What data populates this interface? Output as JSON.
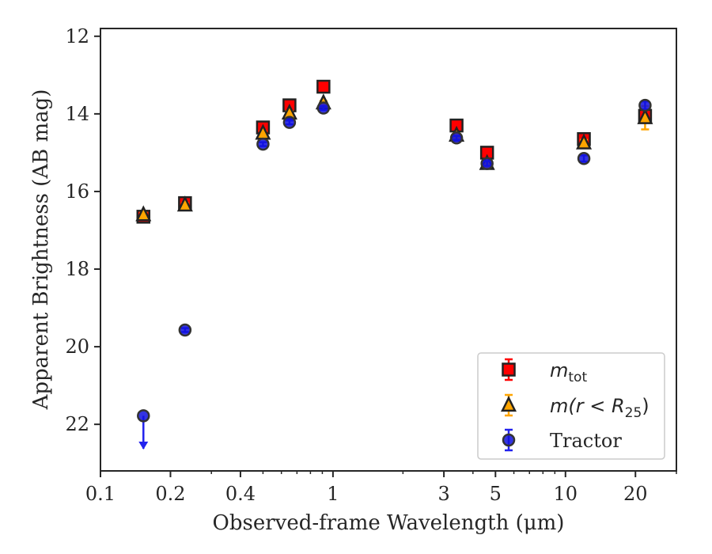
{
  "chart_data": {
    "type": "scatter",
    "xlabel": "Observed-frame Wavelength (μm)",
    "ylabel": "Apparent Brightness (AB mag)",
    "xscale": "log",
    "xlim": [
      0.1,
      30
    ],
    "ylim": [
      23.2,
      11.8
    ],
    "y_inverted": true,
    "x_ticks": [
      0.1,
      0.2,
      0.4,
      1,
      3,
      5,
      10,
      20
    ],
    "x_tick_labels": [
      "0.1",
      "0.2",
      "0.4",
      "1",
      "3",
      "5",
      "10",
      "20"
    ],
    "y_ticks": [
      12,
      14,
      16,
      18,
      20,
      22
    ],
    "y_tick_labels": [
      "12",
      "14",
      "16",
      "18",
      "20",
      "22"
    ],
    "legend_position": "lower-right",
    "series": [
      {
        "name": "m_tot",
        "legend_label": {
          "main": "m",
          "sub": "tot",
          "suffix": ""
        },
        "marker": "square",
        "color": "#ff0000",
        "edge": "#222222",
        "errcolor": "#ff0000",
        "points": [
          {
            "x": 0.153,
            "y": 16.65,
            "err": 0.05
          },
          {
            "x": 0.231,
            "y": 16.3,
            "err": 0.05
          },
          {
            "x": 0.5,
            "y": 14.35,
            "err": 0.05
          },
          {
            "x": 0.65,
            "y": 13.78,
            "err": 0.05
          },
          {
            "x": 0.91,
            "y": 13.3,
            "err": 0.05
          },
          {
            "x": 3.4,
            "y": 14.3,
            "err": 0.05
          },
          {
            "x": 4.6,
            "y": 15.0,
            "err": 0.06
          },
          {
            "x": 12.0,
            "y": 14.65,
            "err": 0.08
          },
          {
            "x": 22.0,
            "y": 14.05,
            "err": 0.15
          }
        ]
      },
      {
        "name": "m(r < R25)",
        "legend_label": {
          "main": "m(r < R",
          "sub": "25",
          "suffix": ")"
        },
        "marker": "triangle",
        "color": "#ffa500",
        "edge": "#222222",
        "errcolor": "#ffa500",
        "points": [
          {
            "x": 0.153,
            "y": 16.6,
            "err": 0.05
          },
          {
            "x": 0.231,
            "y": 16.35,
            "err": 0.05
          },
          {
            "x": 0.5,
            "y": 14.5,
            "err": 0.05
          },
          {
            "x": 0.65,
            "y": 13.98,
            "err": 0.05
          },
          {
            "x": 0.91,
            "y": 13.72,
            "err": 0.05
          },
          {
            "x": 3.4,
            "y": 14.55,
            "err": 0.05
          },
          {
            "x": 4.6,
            "y": 15.28,
            "err": 0.06
          },
          {
            "x": 12.0,
            "y": 14.75,
            "err": 0.08
          },
          {
            "x": 22.0,
            "y": 14.1,
            "err": 0.3
          }
        ]
      },
      {
        "name": "Tractor",
        "legend_label": {
          "main": "Tractor",
          "sub": "",
          "suffix": ""
        },
        "marker": "circle",
        "color": "#1010dd",
        "edge": "#333333",
        "errcolor": "#2222ee",
        "points": [
          {
            "x": 0.153,
            "y": 21.78,
            "err": 0.0,
            "upper_limit": true
          },
          {
            "x": 0.231,
            "y": 19.57,
            "err": 0.05
          },
          {
            "x": 0.5,
            "y": 14.78,
            "err": 0.05
          },
          {
            "x": 0.65,
            "y": 14.22,
            "err": 0.05
          },
          {
            "x": 0.91,
            "y": 13.85,
            "err": 0.05
          },
          {
            "x": 3.4,
            "y": 14.62,
            "err": 0.05
          },
          {
            "x": 4.6,
            "y": 15.28,
            "err": 0.06
          },
          {
            "x": 12.0,
            "y": 15.15,
            "err": 0.08
          },
          {
            "x": 22.0,
            "y": 13.78,
            "err": 0.1
          }
        ]
      }
    ]
  }
}
